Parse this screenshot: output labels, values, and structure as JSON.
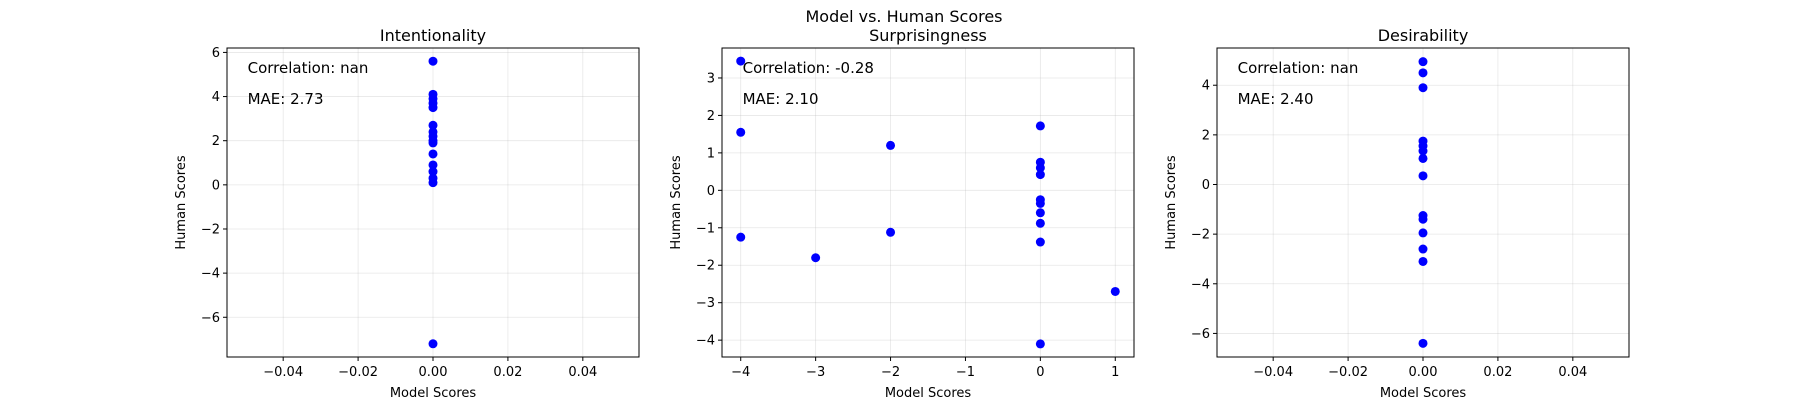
{
  "figure": {
    "suptitle": "Model vs. Human Scores"
  },
  "chart_data": [
    {
      "type": "scatter",
      "title": "Intentionality",
      "xlabel": "Model Scores",
      "ylabel": "Human Scores",
      "xlim": [
        -0.055,
        0.055
      ],
      "ylim": [
        -7.8,
        6.2
      ],
      "xticks": [
        -0.04,
        -0.02,
        0.0,
        0.02,
        0.04
      ],
      "xtick_labels": [
        "−0.04",
        "−0.02",
        "0.00",
        "0.02",
        "0.04"
      ],
      "yticks": [
        -6,
        -4,
        -2,
        0,
        2,
        4,
        6
      ],
      "ytick_labels": [
        "−6",
        "−4",
        "−2",
        "0",
        "2",
        "4",
        "6"
      ],
      "grid": true,
      "marker_color": "#0000ff",
      "annotations": [
        "Correlation: nan",
        "MAE: 2.73"
      ],
      "points": [
        {
          "x": 0,
          "y": 5.6
        },
        {
          "x": 0,
          "y": 4.1
        },
        {
          "x": 0,
          "y": 3.9
        },
        {
          "x": 0,
          "y": 3.7
        },
        {
          "x": 0,
          "y": 3.5
        },
        {
          "x": 0,
          "y": 2.7
        },
        {
          "x": 0,
          "y": 2.4
        },
        {
          "x": 0,
          "y": 2.2
        },
        {
          "x": 0,
          "y": 2.0
        },
        {
          "x": 0,
          "y": 1.9
        },
        {
          "x": 0,
          "y": 1.4
        },
        {
          "x": 0,
          "y": 0.9
        },
        {
          "x": 0,
          "y": 0.6
        },
        {
          "x": 0,
          "y": 0.3
        },
        {
          "x": 0,
          "y": 0.1
        },
        {
          "x": 0,
          "y": -7.2
        }
      ]
    },
    {
      "type": "scatter",
      "title": "Surprisingness",
      "xlabel": "Model Scores",
      "ylabel": "Human Scores",
      "xlim": [
        -4.25,
        1.25
      ],
      "ylim": [
        -4.45,
        3.8
      ],
      "xticks": [
        -4,
        -3,
        -2,
        -1,
        0,
        1
      ],
      "xtick_labels": [
        "−4",
        "−3",
        "−2",
        "−1",
        "0",
        "1"
      ],
      "yticks": [
        -4,
        -3,
        -2,
        -1,
        0,
        1,
        2,
        3
      ],
      "ytick_labels": [
        "−4",
        "−3",
        "−2",
        "−1",
        "0",
        "1",
        "2",
        "3"
      ],
      "grid": true,
      "marker_color": "#0000ff",
      "annotations": [
        "Correlation: -0.28",
        "MAE: 2.10"
      ],
      "points": [
        {
          "x": -4,
          "y": 3.45
        },
        {
          "x": -4,
          "y": 1.55
        },
        {
          "x": -4,
          "y": -1.25
        },
        {
          "x": -3,
          "y": -1.8
        },
        {
          "x": -2,
          "y": 1.2
        },
        {
          "x": -2,
          "y": -1.12
        },
        {
          "x": 0,
          "y": 1.72
        },
        {
          "x": 0,
          "y": 0.75
        },
        {
          "x": 0,
          "y": 0.6
        },
        {
          "x": 0,
          "y": 0.42
        },
        {
          "x": 0,
          "y": -0.25
        },
        {
          "x": 0,
          "y": -0.35
        },
        {
          "x": 0,
          "y": -0.6
        },
        {
          "x": 0,
          "y": -0.88
        },
        {
          "x": 0,
          "y": -1.38
        },
        {
          "x": 0,
          "y": -4.1
        },
        {
          "x": 1,
          "y": -2.7
        }
      ]
    },
    {
      "type": "scatter",
      "title": "Desirability",
      "xlabel": "Model Scores",
      "ylabel": "Human Scores",
      "xlim": [
        -0.055,
        0.055
      ],
      "ylim": [
        -6.95,
        5.5
      ],
      "xticks": [
        -0.04,
        -0.02,
        0.0,
        0.02,
        0.04
      ],
      "xtick_labels": [
        "−0.04",
        "−0.02",
        "0.00",
        "0.02",
        "0.04"
      ],
      "yticks": [
        -6,
        -4,
        -2,
        0,
        2,
        4
      ],
      "ytick_labels": [
        "−6",
        "−4",
        "−2",
        "0",
        "2",
        "4"
      ],
      "grid": true,
      "marker_color": "#0000ff",
      "annotations": [
        "Correlation: nan",
        "MAE: 2.40"
      ],
      "points": [
        {
          "x": 0,
          "y": 4.95
        },
        {
          "x": 0,
          "y": 4.5
        },
        {
          "x": 0,
          "y": 3.9
        },
        {
          "x": 0,
          "y": 1.75
        },
        {
          "x": 0,
          "y": 1.55
        },
        {
          "x": 0,
          "y": 1.35
        },
        {
          "x": 0,
          "y": 1.05
        },
        {
          "x": 0,
          "y": 0.35
        },
        {
          "x": 0,
          "y": -1.25
        },
        {
          "x": 0,
          "y": -1.4
        },
        {
          "x": 0,
          "y": -1.95
        },
        {
          "x": 0,
          "y": -2.6
        },
        {
          "x": 0,
          "y": -3.1
        },
        {
          "x": 0,
          "y": -6.4
        }
      ]
    }
  ]
}
